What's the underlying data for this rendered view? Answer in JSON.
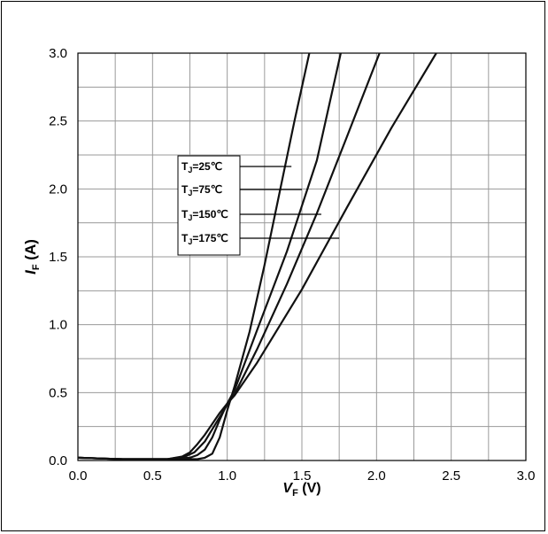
{
  "chart_data": {
    "type": "line",
    "title": "",
    "xlabel": {
      "main": "V",
      "sub": "F",
      "unit": " (V)"
    },
    "ylabel": {
      "main": "I",
      "sub": "F",
      "unit": " (A)"
    },
    "xlim": [
      0,
      3.0
    ],
    "ylim": [
      0,
      3.0
    ],
    "x_ticks": [
      "0.0",
      "0.5",
      "1.0",
      "1.5",
      "2.0",
      "2.5",
      "3.0"
    ],
    "y_ticks": [
      "0.0",
      "0.5",
      "1.0",
      "1.5",
      "2.0",
      "2.5",
      "3.0"
    ],
    "grid": true,
    "legend_placement": "upper-left, leader lines to curves",
    "series": [
      {
        "name": "T_J=25℃",
        "label": {
          "pre": "T",
          "sub": "J",
          "post": "=25℃"
        },
        "points": [
          [
            0,
            0.02
          ],
          [
            0.3,
            0.01
          ],
          [
            0.6,
            0.01
          ],
          [
            0.8,
            0.01
          ],
          [
            0.85,
            0.02
          ],
          [
            0.9,
            0.05
          ],
          [
            0.95,
            0.17
          ],
          [
            1.0,
            0.37
          ],
          [
            1.05,
            0.55
          ],
          [
            1.15,
            0.95
          ],
          [
            1.25,
            1.44
          ],
          [
            1.35,
            1.97
          ],
          [
            1.45,
            2.5
          ],
          [
            1.55,
            3.0
          ]
        ]
      },
      {
        "name": "T_J=75℃",
        "label": {
          "pre": "T",
          "sub": "J",
          "post": "=75℃"
        },
        "points": [
          [
            0,
            0.02
          ],
          [
            0.3,
            0.01
          ],
          [
            0.6,
            0.01
          ],
          [
            0.75,
            0.02
          ],
          [
            0.8,
            0.04
          ],
          [
            0.85,
            0.08
          ],
          [
            0.9,
            0.17
          ],
          [
            0.95,
            0.3
          ],
          [
            1.0,
            0.42
          ],
          [
            1.05,
            0.52
          ],
          [
            1.2,
            0.96
          ],
          [
            1.4,
            1.54
          ],
          [
            1.6,
            2.21
          ],
          [
            1.76,
            3.0
          ]
        ]
      },
      {
        "name": "T_J=150℃",
        "label": {
          "pre": "T",
          "sub": "J",
          "post": "=150℃"
        },
        "points": [
          [
            0,
            0.02
          ],
          [
            0.3,
            0.01
          ],
          [
            0.6,
            0.01
          ],
          [
            0.72,
            0.03
          ],
          [
            0.78,
            0.06
          ],
          [
            0.85,
            0.14
          ],
          [
            0.9,
            0.23
          ],
          [
            0.95,
            0.32
          ],
          [
            1.0,
            0.41
          ],
          [
            1.05,
            0.49
          ],
          [
            1.2,
            0.82
          ],
          [
            1.4,
            1.3
          ],
          [
            1.6,
            1.82
          ],
          [
            1.8,
            2.38
          ],
          [
            2.02,
            3.0
          ]
        ]
      },
      {
        "name": "T_J=175℃",
        "label": {
          "pre": "T",
          "sub": "J",
          "post": "=175℃"
        },
        "points": [
          [
            0,
            0.02
          ],
          [
            0.3,
            0.01
          ],
          [
            0.6,
            0.01
          ],
          [
            0.7,
            0.03
          ],
          [
            0.75,
            0.06
          ],
          [
            0.8,
            0.12
          ],
          [
            0.85,
            0.19
          ],
          [
            0.9,
            0.27
          ],
          [
            0.95,
            0.35
          ],
          [
            1.0,
            0.42
          ],
          [
            1.05,
            0.48
          ],
          [
            1.2,
            0.72
          ],
          [
            1.5,
            1.26
          ],
          [
            1.8,
            1.86
          ],
          [
            2.1,
            2.45
          ],
          [
            2.4,
            3.0
          ]
        ]
      }
    ],
    "legend_leaders": [
      {
        "series": 0,
        "target_x": 1.43
      },
      {
        "series": 1,
        "target_x": 1.5
      },
      {
        "series": 2,
        "target_x": 1.63
      },
      {
        "series": 3,
        "target_x": 1.75
      }
    ]
  }
}
